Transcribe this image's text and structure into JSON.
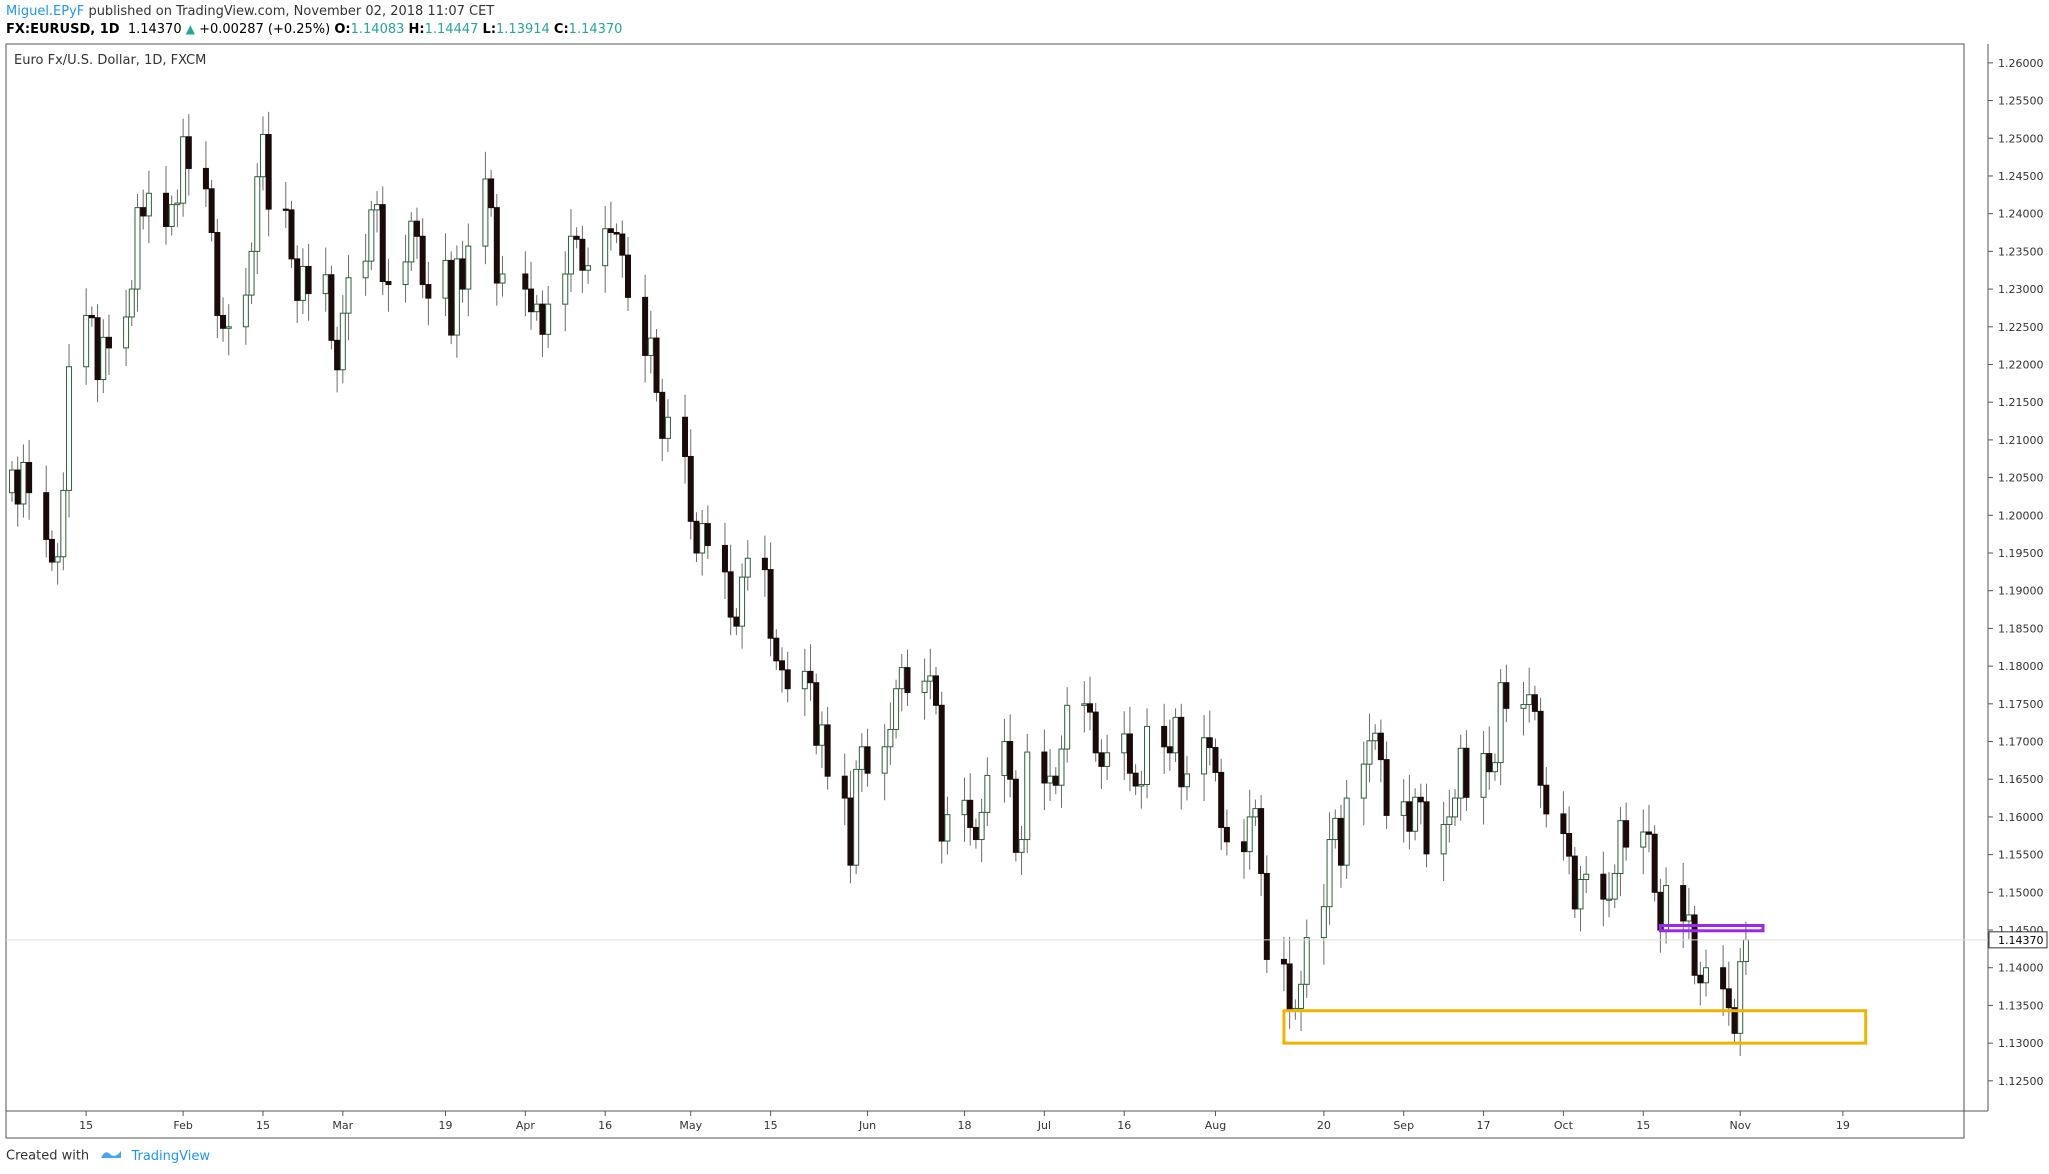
{
  "header": {
    "author": "Miguel.EPyF",
    "published_text": "published on TradingView.com, November 02, 2018 11:07 CET",
    "symbol": "FX:EURUSD, 1D",
    "last": "1.14370",
    "change": "+0.00287 (+0.25%)",
    "o_label": "O:",
    "o_value": "1.14083",
    "h_label": "H:",
    "h_value": "1.14447",
    "l_label": "L:",
    "l_value": "1.13914",
    "c_label": "C:",
    "c_value": "1.14370"
  },
  "footer": {
    "created_with": "Created with",
    "brand": "TradingView",
    "brand_icon": "tradingview-logo-icon"
  },
  "colors": {
    "up_fill": "#ffffff",
    "up_border": "#2e5e3a",
    "down_fill": "#1a0a0a",
    "wick": "#6b6b6b",
    "grid": "#f0f0f0",
    "support_box": "#f0b400",
    "resistance_box": "#9c27f0",
    "text": "#333333",
    "accent": "#2196f3"
  },
  "chart_data": {
    "type": "candlestick",
    "title": "Euro Fx/U.S. Dollar, 1D, FXCM",
    "ylim": [
      1.121,
      1.2625
    ],
    "y_ticks": [
      "1.12500",
      "1.13000",
      "1.13500",
      "1.14000",
      "1.14500",
      "1.15000",
      "1.15500",
      "1.16000",
      "1.16500",
      "1.17000",
      "1.17500",
      "1.18000",
      "1.18500",
      "1.19000",
      "1.19500",
      "1.20000",
      "1.20500",
      "1.21000",
      "1.21500",
      "1.22000",
      "1.22500",
      "1.23000",
      "1.23500",
      "1.24000",
      "1.24500",
      "1.25000",
      "1.25500",
      "1.26000"
    ],
    "last_price_label": "1.14370",
    "last_price": 1.1437,
    "x_ticks": [
      {
        "label": "15",
        "date": "2018-01-15"
      },
      {
        "label": "Feb",
        "date": "2018-02-01"
      },
      {
        "label": "15",
        "date": "2018-02-15"
      },
      {
        "label": "Mar",
        "date": "2018-03-01"
      },
      {
        "label": "19",
        "date": "2018-03-19"
      },
      {
        "label": "Apr",
        "date": "2018-04-02"
      },
      {
        "label": "16",
        "date": "2018-04-16"
      },
      {
        "label": "May",
        "date": "2018-05-01"
      },
      {
        "label": "15",
        "date": "2018-05-15"
      },
      {
        "label": "Jun",
        "date": "2018-06-01"
      },
      {
        "label": "18",
        "date": "2018-06-18"
      },
      {
        "label": "Jul",
        "date": "2018-07-02"
      },
      {
        "label": "16",
        "date": "2018-07-16"
      },
      {
        "label": "Aug",
        "date": "2018-08-01"
      },
      {
        "label": "20",
        "date": "2018-08-20"
      },
      {
        "label": "Sep",
        "date": "2018-09-03"
      },
      {
        "label": "17",
        "date": "2018-09-17"
      },
      {
        "label": "Oct",
        "date": "2018-10-01"
      },
      {
        "label": "15",
        "date": "2018-10-15"
      },
      {
        "label": "Nov",
        "date": "2018-11-01"
      },
      {
        "label": "19",
        "date": "2018-11-19"
      }
    ],
    "x_range": [
      "2018-01-02",
      "2018-11-22"
    ],
    "closes": [
      [
        "2018-01-02",
        1.206
      ],
      [
        "2018-01-03",
        1.2015
      ],
      [
        "2018-01-04",
        1.207
      ],
      [
        "2018-01-05",
        1.203
      ],
      [
        "2018-01-08",
        1.1968
      ],
      [
        "2018-01-09",
        1.1938
      ],
      [
        "2018-01-10",
        1.1945
      ],
      [
        "2018-01-11",
        1.2033
      ],
      [
        "2018-01-12",
        1.2197
      ],
      [
        "2018-01-15",
        1.2265
      ],
      [
        "2018-01-16",
        1.2262
      ],
      [
        "2018-01-17",
        1.218
      ],
      [
        "2018-01-18",
        1.2236
      ],
      [
        "2018-01-19",
        1.2222
      ],
      [
        "2018-01-22",
        1.2263
      ],
      [
        "2018-01-23",
        1.23
      ],
      [
        "2018-01-24",
        1.2408
      ],
      [
        "2018-01-25",
        1.2397
      ],
      [
        "2018-01-26",
        1.2427
      ],
      [
        "2018-01-29",
        1.2383
      ],
      [
        "2018-01-30",
        1.2412
      ],
      [
        "2018-01-31",
        1.2414
      ],
      [
        "2018-02-01",
        1.2502
      ],
      [
        "2018-02-02",
        1.246
      ],
      [
        "2018-02-05",
        1.2433
      ],
      [
        "2018-02-06",
        1.2375
      ],
      [
        "2018-02-07",
        1.2265
      ],
      [
        "2018-02-08",
        1.2248
      ],
      [
        "2018-02-09",
        1.225
      ],
      [
        "2018-02-12",
        1.2292
      ],
      [
        "2018-02-13",
        1.235
      ],
      [
        "2018-02-14",
        1.2449
      ],
      [
        "2018-02-15",
        1.2505
      ],
      [
        "2018-02-16",
        1.2406
      ],
      [
        "2018-02-19",
        1.2405
      ],
      [
        "2018-02-20",
        1.234
      ],
      [
        "2018-02-21",
        1.2285
      ],
      [
        "2018-02-22",
        1.233
      ],
      [
        "2018-02-23",
        1.2294
      ],
      [
        "2018-02-26",
        1.2319
      ],
      [
        "2018-02-27",
        1.2232
      ],
      [
        "2018-02-28",
        1.2193
      ],
      [
        "2018-03-01",
        1.2268
      ],
      [
        "2018-03-02",
        1.2315
      ],
      [
        "2018-03-05",
        1.2337
      ],
      [
        "2018-03-06",
        1.2405
      ],
      [
        "2018-03-07",
        1.2412
      ],
      [
        "2018-03-08",
        1.231
      ],
      [
        "2018-03-09",
        1.2306
      ],
      [
        "2018-03-12",
        1.2336
      ],
      [
        "2018-03-13",
        1.239
      ],
      [
        "2018-03-14",
        1.237
      ],
      [
        "2018-03-15",
        1.2306
      ],
      [
        "2018-03-16",
        1.2288
      ],
      [
        "2018-03-19",
        1.2338
      ],
      [
        "2018-03-20",
        1.2239
      ],
      [
        "2018-03-21",
        1.234
      ],
      [
        "2018-03-22",
        1.23
      ],
      [
        "2018-03-23",
        1.2357
      ],
      [
        "2018-03-26",
        1.2446
      ],
      [
        "2018-03-27",
        1.2408
      ],
      [
        "2018-03-28",
        1.2308
      ],
      [
        "2018-03-29",
        1.232
      ],
      [
        "2018-04-02",
        1.23
      ],
      [
        "2018-04-03",
        1.227
      ],
      [
        "2018-04-04",
        1.228
      ],
      [
        "2018-04-05",
        1.224
      ],
      [
        "2018-04-06",
        1.228
      ],
      [
        "2018-04-09",
        1.232
      ],
      [
        "2018-04-10",
        1.237
      ],
      [
        "2018-04-11",
        1.2366
      ],
      [
        "2018-04-12",
        1.2325
      ],
      [
        "2018-04-13",
        1.2331
      ],
      [
        "2018-04-16",
        1.238
      ],
      [
        "2018-04-17",
        1.2375
      ],
      [
        "2018-04-18",
        1.2373
      ],
      [
        "2018-04-19",
        1.2345
      ],
      [
        "2018-04-20",
        1.2289
      ],
      [
        "2018-04-23",
        1.2212
      ],
      [
        "2018-04-24",
        1.2235
      ],
      [
        "2018-04-25",
        1.2163
      ],
      [
        "2018-04-26",
        1.2102
      ],
      [
        "2018-04-27",
        1.213
      ],
      [
        "2018-04-30",
        1.2078
      ],
      [
        "2018-05-01",
        1.1992
      ],
      [
        "2018-05-02",
        1.195
      ],
      [
        "2018-05-03",
        1.1989
      ],
      [
        "2018-05-04",
        1.196
      ],
      [
        "2018-05-07",
        1.1925
      ],
      [
        "2018-05-08",
        1.1865
      ],
      [
        "2018-05-09",
        1.1853
      ],
      [
        "2018-05-10",
        1.1918
      ],
      [
        "2018-05-11",
        1.1943
      ],
      [
        "2018-05-14",
        1.1928
      ],
      [
        "2018-05-15",
        1.1837
      ],
      [
        "2018-05-16",
        1.1807
      ],
      [
        "2018-05-17",
        1.1795
      ],
      [
        "2018-05-18",
        1.177
      ],
      [
        "2018-05-21",
        1.1793
      ],
      [
        "2018-05-22",
        1.1778
      ],
      [
        "2018-05-23",
        1.1695
      ],
      [
        "2018-05-24",
        1.1722
      ],
      [
        "2018-05-25",
        1.1654
      ],
      [
        "2018-05-28",
        1.1625
      ],
      [
        "2018-05-29",
        1.1536
      ],
      [
        "2018-05-30",
        1.1663
      ],
      [
        "2018-05-31",
        1.1693
      ],
      [
        "2018-06-01",
        1.1658
      ],
      [
        "2018-06-04",
        1.1693
      ],
      [
        "2018-06-05",
        1.1716
      ],
      [
        "2018-06-06",
        1.177
      ],
      [
        "2018-06-07",
        1.1798
      ],
      [
        "2018-06-08",
        1.1765
      ],
      [
        "2018-06-11",
        1.178
      ],
      [
        "2018-06-12",
        1.1787
      ],
      [
        "2018-06-13",
        1.1748
      ],
      [
        "2018-06-14",
        1.1568
      ],
      [
        "2018-06-15",
        1.1603
      ],
      [
        "2018-06-18",
        1.1622
      ],
      [
        "2018-06-19",
        1.1586
      ],
      [
        "2018-06-20",
        1.157
      ],
      [
        "2018-06-21",
        1.1606
      ],
      [
        "2018-06-22",
        1.1655
      ],
      [
        "2018-06-25",
        1.17
      ],
      [
        "2018-06-26",
        1.165
      ],
      [
        "2018-06-27",
        1.1553
      ],
      [
        "2018-06-28",
        1.157
      ],
      [
        "2018-06-29",
        1.1686
      ],
      [
        "2018-07-02",
        1.1645
      ],
      [
        "2018-07-03",
        1.1654
      ],
      [
        "2018-07-04",
        1.1642
      ],
      [
        "2018-07-05",
        1.169
      ],
      [
        "2018-07-06",
        1.1748
      ],
      [
        "2018-07-09",
        1.175
      ],
      [
        "2018-07-10",
        1.1739
      ],
      [
        "2018-07-11",
        1.1685
      ],
      [
        "2018-07-12",
        1.1667
      ],
      [
        "2018-07-13",
        1.1685
      ],
      [
        "2018-07-16",
        1.171
      ],
      [
        "2018-07-17",
        1.1658
      ],
      [
        "2018-07-18",
        1.1641
      ],
      [
        "2018-07-19",
        1.1643
      ],
      [
        "2018-07-20",
        1.172
      ],
      [
        "2018-07-23",
        1.1693
      ],
      [
        "2018-07-24",
        1.1685
      ],
      [
        "2018-07-25",
        1.1732
      ],
      [
        "2018-07-26",
        1.164
      ],
      [
        "2018-07-27",
        1.1657
      ],
      [
        "2018-07-30",
        1.1705
      ],
      [
        "2018-07-31",
        1.1692
      ],
      [
        "2018-08-01",
        1.1659
      ],
      [
        "2018-08-02",
        1.1586
      ],
      [
        "2018-08-03",
        1.1567
      ],
      [
        "2018-08-06",
        1.1554
      ],
      [
        "2018-08-07",
        1.16
      ],
      [
        "2018-08-08",
        1.1611
      ],
      [
        "2018-08-09",
        1.1525
      ],
      [
        "2018-08-10",
        1.1411
      ],
      [
        "2018-08-13",
        1.1405
      ],
      [
        "2018-08-14",
        1.1343
      ],
      [
        "2018-08-15",
        1.1346
      ],
      [
        "2018-08-16",
        1.1378
      ],
      [
        "2018-08-17",
        1.144
      ],
      [
        "2018-08-20",
        1.1481
      ],
      [
        "2018-08-21",
        1.157
      ],
      [
        "2018-08-22",
        1.1598
      ],
      [
        "2018-08-23",
        1.1536
      ],
      [
        "2018-08-24",
        1.1625
      ],
      [
        "2018-08-27",
        1.167
      ],
      [
        "2018-08-28",
        1.1701
      ],
      [
        "2018-08-29",
        1.1711
      ],
      [
        "2018-08-30",
        1.1676
      ],
      [
        "2018-08-31",
        1.1602
      ],
      [
        "2018-09-03",
        1.162
      ],
      [
        "2018-09-04",
        1.1581
      ],
      [
        "2018-09-05",
        1.1626
      ],
      [
        "2018-09-06",
        1.162
      ],
      [
        "2018-09-07",
        1.1551
      ],
      [
        "2018-09-10",
        1.159
      ],
      [
        "2018-09-11",
        1.16
      ],
      [
        "2018-09-12",
        1.1625
      ],
      [
        "2018-09-13",
        1.1691
      ],
      [
        "2018-09-14",
        1.1626
      ],
      [
        "2018-09-17",
        1.1684
      ],
      [
        "2018-09-18",
        1.166
      ],
      [
        "2018-09-19",
        1.1672
      ],
      [
        "2018-09-20",
        1.1778
      ],
      [
        "2018-09-21",
        1.1744
      ],
      [
        "2018-09-24",
        1.1749
      ],
      [
        "2018-09-25",
        1.1762
      ],
      [
        "2018-09-26",
        1.174
      ],
      [
        "2018-09-27",
        1.1642
      ],
      [
        "2018-09-28",
        1.1604
      ],
      [
        "2018-10-01",
        1.1578
      ],
      [
        "2018-10-02",
        1.1548
      ],
      [
        "2018-10-03",
        1.1478
      ],
      [
        "2018-10-04",
        1.1517
      ],
      [
        "2018-10-05",
        1.1524
      ],
      [
        "2018-10-08",
        1.1491
      ],
      [
        "2018-10-09",
        1.1491
      ],
      [
        "2018-10-10",
        1.1525
      ],
      [
        "2018-10-11",
        1.1595
      ],
      [
        "2018-10-12",
        1.156
      ],
      [
        "2018-10-15",
        1.158
      ],
      [
        "2018-10-16",
        1.1577
      ],
      [
        "2018-10-17",
        1.15
      ],
      [
        "2018-10-18",
        1.145
      ],
      [
        "2018-10-19",
        1.1509
      ],
      [
        "2018-10-22",
        1.1462
      ],
      [
        "2018-10-23",
        1.147
      ],
      [
        "2018-10-24",
        1.139
      ],
      [
        "2018-10-25",
        1.138
      ],
      [
        "2018-10-26",
        1.14
      ],
      [
        "2018-10-29",
        1.1372
      ],
      [
        "2018-10-30",
        1.1347
      ],
      [
        "2018-10-31",
        1.1313
      ],
      [
        "2018-11-01",
        1.1408
      ],
      [
        "2018-11-02",
        1.1437
      ]
    ],
    "annotations": [
      {
        "type": "rectangle",
        "name": "support-zone",
        "from": "2018-08-13",
        "to": "2018-11-23",
        "y_top": 1.1343,
        "y_bottom": 1.13,
        "color": "#f0b400"
      },
      {
        "type": "rectangle",
        "name": "resistance-zone",
        "from": "2018-10-18",
        "to": "2018-11-05",
        "y_top": 1.1456,
        "y_bottom": 1.1449,
        "color": "#9c27f0"
      }
    ],
    "grid": false
  }
}
